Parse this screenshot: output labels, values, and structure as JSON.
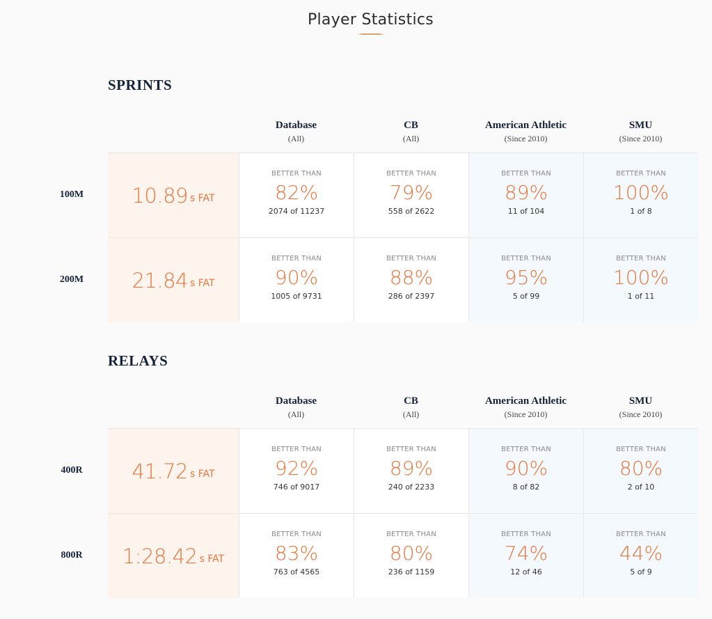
{
  "page": {
    "title": "Player Statistics"
  },
  "columns": [
    {
      "name": "Database",
      "sub": "(All)"
    },
    {
      "name": "CB",
      "sub": "(All)"
    },
    {
      "name": "American Athletic",
      "sub": "(Since 2010)"
    },
    {
      "name": "SMU",
      "sub": "(Since 2010)"
    }
  ],
  "better_than_label": "BETTER THAN",
  "colors": {
    "accent": "#e8773e",
    "time_bg": "#fdf4ee",
    "conference_bg": "#f3f9fc"
  },
  "sections": [
    {
      "title": "SPRINTS",
      "rows": [
        {
          "event": "100M",
          "time": "10.89",
          "unit": "s FAT",
          "stats": [
            {
              "pct": "82%",
              "count": "2074 of 11237"
            },
            {
              "pct": "79%",
              "count": "558 of 2622"
            },
            {
              "pct": "89%",
              "count": "11 of 104"
            },
            {
              "pct": "100%",
              "count": "1 of 8"
            }
          ]
        },
        {
          "event": "200M",
          "time": "21.84",
          "unit": "s FAT",
          "stats": [
            {
              "pct": "90%",
              "count": "1005 of 9731"
            },
            {
              "pct": "88%",
              "count": "286 of 2397"
            },
            {
              "pct": "95%",
              "count": "5 of 99"
            },
            {
              "pct": "100%",
              "count": "1 of 11"
            }
          ]
        }
      ]
    },
    {
      "title": "RELAYS",
      "rows": [
        {
          "event": "400R",
          "time": "41.72",
          "unit": "s FAT",
          "stats": [
            {
              "pct": "92%",
              "count": "746 of 9017"
            },
            {
              "pct": "89%",
              "count": "240 of 2233"
            },
            {
              "pct": "90%",
              "count": "8 of 82"
            },
            {
              "pct": "80%",
              "count": "2 of 10"
            }
          ]
        },
        {
          "event": "800R",
          "time": "1:28.42",
          "unit": "s FAT",
          "stats": [
            {
              "pct": "83%",
              "count": "763 of 4565"
            },
            {
              "pct": "80%",
              "count": "236 of 1159"
            },
            {
              "pct": "74%",
              "count": "12 of 46"
            },
            {
              "pct": "44%",
              "count": "5 of 9"
            }
          ]
        }
      ]
    }
  ]
}
